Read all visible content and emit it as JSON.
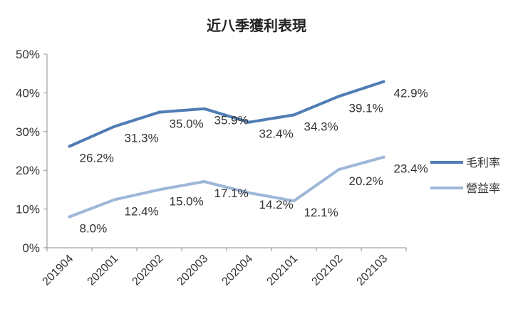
{
  "chart_data": {
    "type": "line",
    "title": "近八季獲利表現",
    "xlabel": "",
    "ylabel": "",
    "categories": [
      "201904",
      "202001",
      "202002",
      "202003",
      "202004",
      "202101",
      "202102",
      "202103"
    ],
    "ylim": [
      0,
      50
    ],
    "yticks": [
      "0%",
      "10%",
      "20%",
      "30%",
      "40%",
      "50%"
    ],
    "grid": false,
    "legend_position": "right",
    "series": [
      {
        "name": "毛利率",
        "color": "#4F7DB4",
        "values": [
          26.2,
          31.3,
          35.0,
          35.9,
          32.4,
          34.3,
          39.1,
          42.9
        ],
        "labels": [
          "26.2%",
          "31.3%",
          "35.0%",
          "35.9%",
          "32.4%",
          "34.3%",
          "39.1%",
          "42.9%"
        ]
      },
      {
        "name": "營益率",
        "color": "#9EB7D8",
        "values": [
          8.0,
          12.4,
          15.0,
          17.1,
          14.2,
          12.1,
          20.2,
          23.4
        ],
        "labels": [
          "8.0%",
          "12.4%",
          "15.0%",
          "17.1%",
          "14.2%",
          "12.1%",
          "20.2%",
          "23.4%"
        ]
      }
    ]
  }
}
